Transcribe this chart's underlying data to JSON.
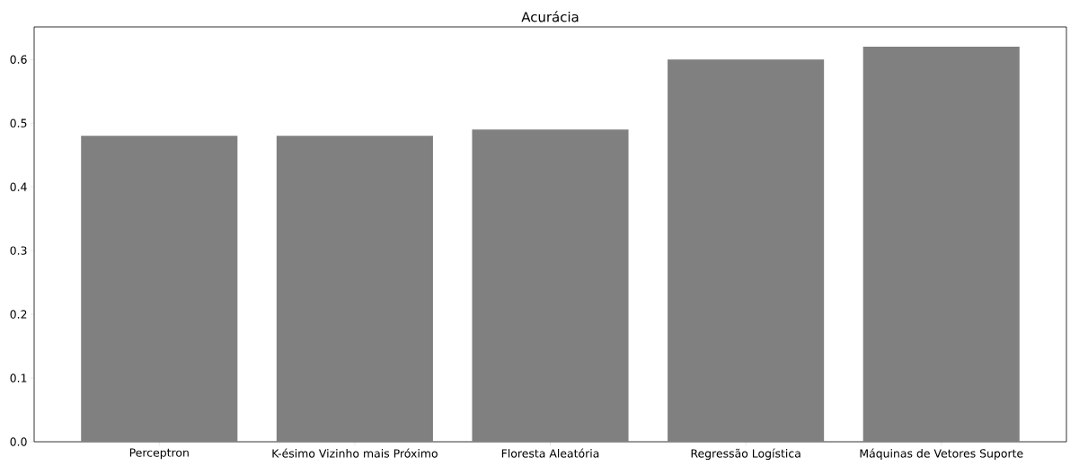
{
  "chart_data": {
    "type": "bar",
    "title": "Acurácia",
    "categories": [
      "Perceptron",
      "K-ésimo Vizinho mais Próximo",
      "Floresta Aleatória",
      "Regressão Logística",
      "Máquinas de Vetores Suporte"
    ],
    "values": [
      0.48,
      0.48,
      0.49,
      0.6,
      0.62
    ],
    "color": "#808080",
    "ylim": [
      0,
      0.651
    ],
    "yticks": [
      {
        "value": 0,
        "label": "0.0"
      },
      {
        "value": 0.1,
        "label": "0.1"
      },
      {
        "value": 0.2,
        "label": "0.2"
      },
      {
        "value": 0.3,
        "label": "0.3"
      },
      {
        "value": 0.4,
        "label": "0.4"
      },
      {
        "value": 0.5,
        "label": "0.5"
      },
      {
        "value": 0.6,
        "label": "0.6"
      }
    ]
  }
}
